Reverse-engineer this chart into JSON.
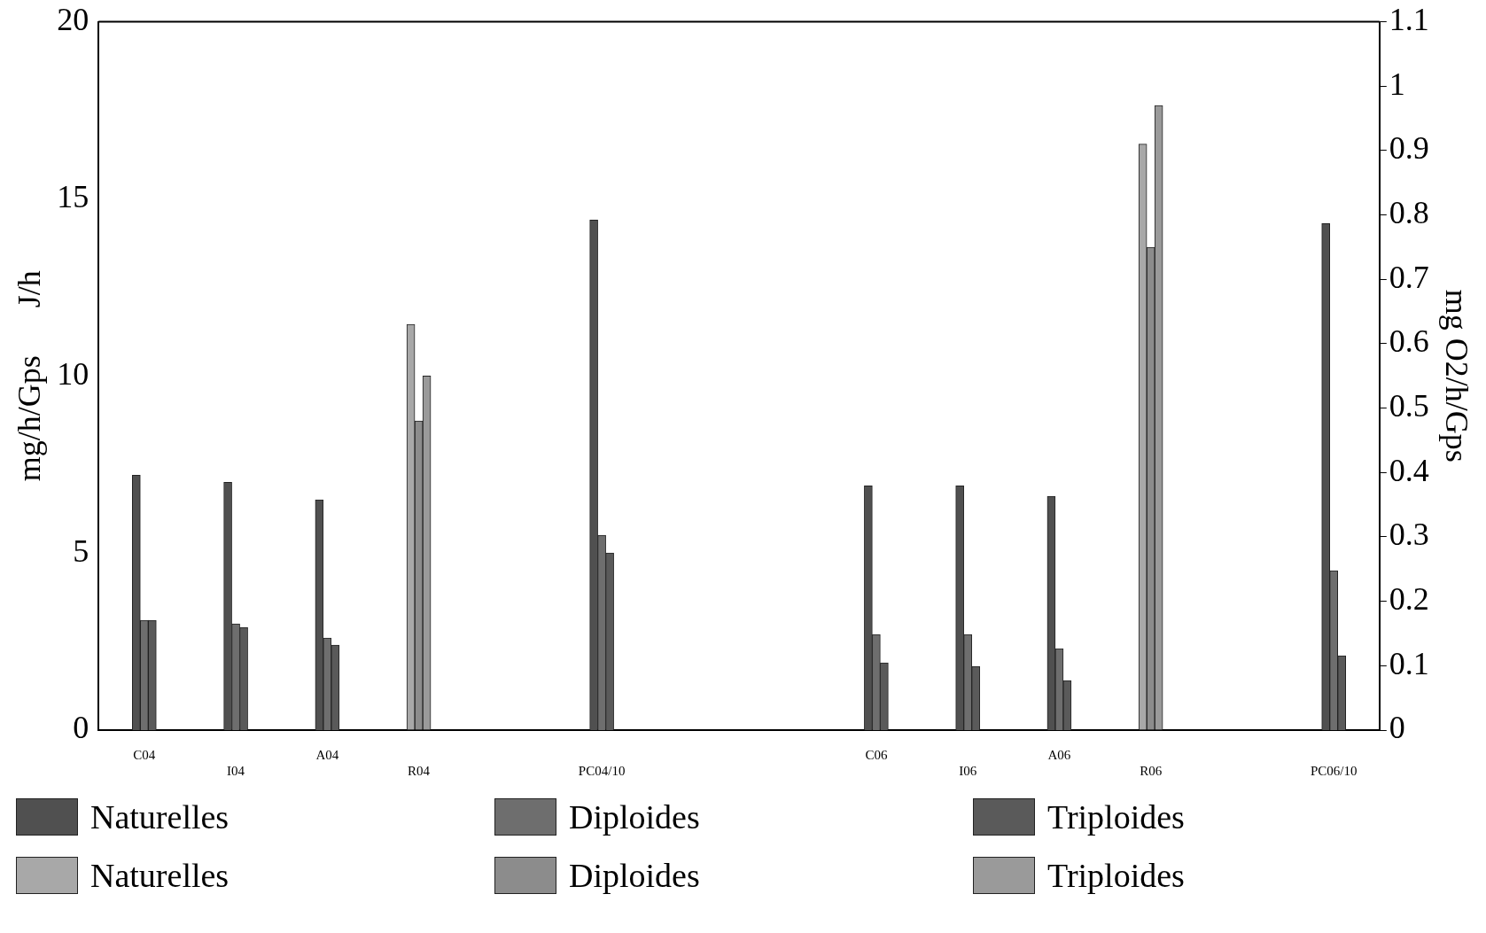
{
  "chart_data": {
    "type": "bar",
    "categories": [
      "C04",
      "I04",
      "A04",
      "R04",
      null,
      "PC04/10",
      null,
      null,
      "C06",
      "I06",
      "A06",
      "R06",
      null,
      "PC06/10"
    ],
    "ylabel": "mg/h/Gps      J/h",
    "y2label": "mg O2/h/Gps",
    "series": [
      {
        "name": "Naturelles",
        "color": "#505050",
        "values": [
          7.2,
          7.0,
          6.5,
          null,
          null,
          14.4,
          null,
          null,
          6.9,
          6.9,
          6.6,
          null,
          null,
          14.3
        ]
      },
      {
        "name": "Diploides",
        "color": "#6e6e6e",
        "values": [
          3.1,
          3.0,
          2.6,
          null,
          null,
          5.5,
          null,
          null,
          2.7,
          2.7,
          2.3,
          null,
          null,
          4.5
        ]
      },
      {
        "name": "Triploides",
        "color": "#5a5a5a",
        "values": [
          3.1,
          2.9,
          2.4,
          null,
          null,
          5.0,
          null,
          null,
          1.9,
          1.8,
          1.4,
          null,
          null,
          2.1
        ]
      },
      {
        "name": "Naturelles",
        "color": "#a8a8a8",
        "axis": "y2",
        "values": [
          null,
          null,
          null,
          0.63,
          null,
          null,
          null,
          null,
          null,
          null,
          null,
          0.91,
          null,
          null
        ]
      },
      {
        "name": "Diploides",
        "color": "#8c8c8c",
        "axis": "y2",
        "values": [
          null,
          null,
          null,
          0.48,
          null,
          null,
          null,
          null,
          null,
          null,
          null,
          0.75,
          null,
          null
        ]
      },
      {
        "name": "Triploides",
        "color": "#9a9a9a",
        "axis": "y2",
        "values": [
          null,
          null,
          null,
          0.55,
          null,
          null,
          null,
          null,
          null,
          null,
          null,
          0.97,
          null,
          null
        ]
      }
    ],
    "ylim": [
      0,
      20
    ],
    "yticks": [
      0,
      5,
      10,
      15,
      20
    ],
    "y2lim": [
      0,
      1.1
    ],
    "y2ticks": [
      0,
      0.1,
      0.2,
      0.3,
      0.4,
      0.5,
      0.6,
      0.7,
      0.8,
      0.9,
      1,
      1.1
    ],
    "grid": false,
    "legend": "bottom"
  }
}
